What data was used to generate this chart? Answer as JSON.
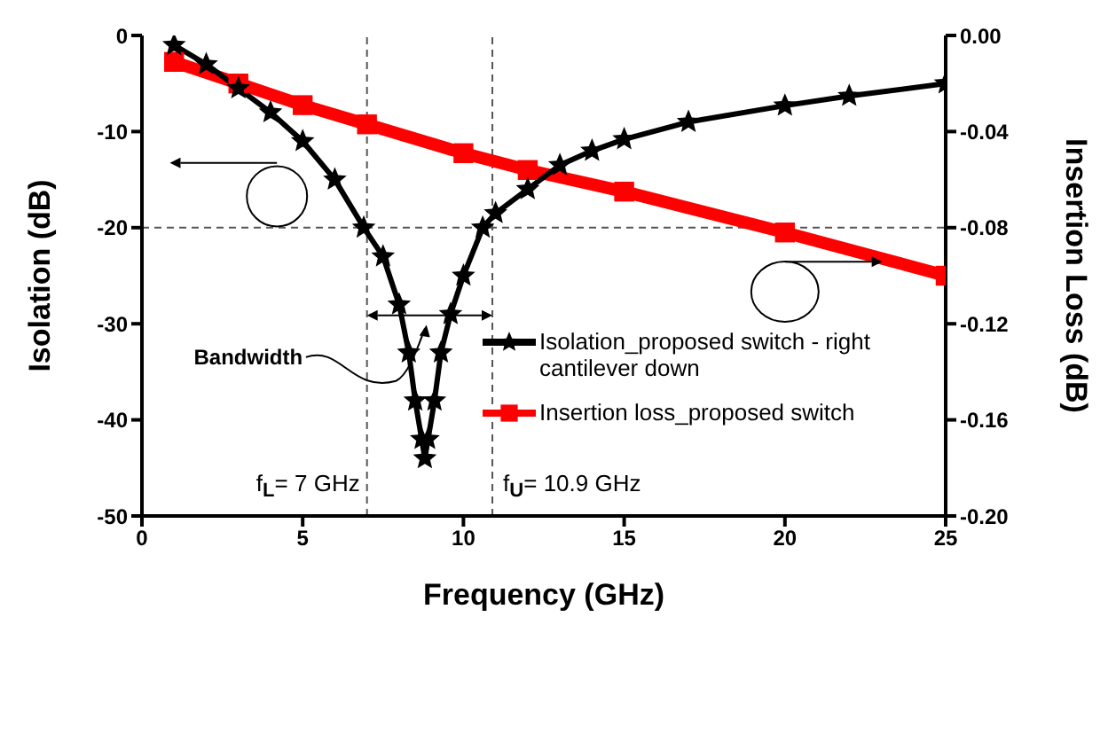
{
  "chart_data": {
    "type": "line",
    "xlabel": "Frequency (GHz)",
    "ylabel": "Isolation (dB)",
    "y2label": "Insertion Loss (dB)",
    "xlim": [
      0,
      25
    ],
    "xticks": [
      0,
      5,
      10,
      15,
      20,
      25
    ],
    "ylim": [
      -50,
      0
    ],
    "yticks": [
      -50,
      -40,
      -30,
      -20,
      -10,
      0
    ],
    "y2lim": [
      -0.2,
      0
    ],
    "y2ticks": [
      {
        "value": -0.2,
        "label": "-0.20"
      },
      {
        "value": -0.16,
        "label": "-0.16"
      },
      {
        "value": -0.12,
        "label": "-0.12"
      },
      {
        "value": -0.08,
        "label": "-0.08"
      },
      {
        "value": -0.04,
        "label": "-0.04"
      },
      {
        "value": 0,
        "label": "0.00"
      }
    ],
    "series": [
      {
        "name": "Isolation_proposed switch - right cantilever down",
        "color": "#000000",
        "marker": "star",
        "x": [
          1,
          2,
          3,
          4,
          5,
          6,
          6.9,
          7.5,
          8,
          8.3,
          8.5,
          8.7,
          8.8,
          8.9,
          9.1,
          9.3,
          9.6,
          10,
          10.6,
          11,
          12,
          13,
          14,
          15,
          17,
          20,
          22,
          25
        ],
        "values": [
          -1,
          -3,
          -5.5,
          -8,
          -11,
          -15,
          -20,
          -23,
          -28,
          -33,
          -38,
          -42,
          -44,
          -42,
          -38,
          -33,
          -29,
          -25,
          -20,
          -18.5,
          -16,
          -13.5,
          -12,
          -10.8,
          -9,
          -7.3,
          -6.3,
          -5
        ]
      },
      {
        "name": "Insertion loss_proposed switch",
        "color": "#ff0000",
        "marker": "square",
        "axis": "y2",
        "x": [
          1,
          3,
          5,
          7,
          10,
          12,
          15,
          20,
          25
        ],
        "values": [
          -0.011,
          -0.02,
          -0.029,
          -0.037,
          -0.049,
          -0.056,
          -0.065,
          -0.082,
          -0.1
        ]
      }
    ],
    "ref_lines": [
      {
        "axis": "x",
        "value": 7,
        "label": "f$_{L}$= 7 GHz",
        "color": "#555555",
        "line_style": "dashed"
      },
      {
        "axis": "x",
        "value": 10.9,
        "label": "f$_{U}$= 10.9 GHz",
        "color": "#555555",
        "line_style": "dashed"
      },
      {
        "axis": "y",
        "value": -20,
        "color": "#555555",
        "line_style": "dashed"
      }
    ],
    "annotations": [
      "Bandwidth"
    ],
    "legend": "right",
    "grid": false
  }
}
